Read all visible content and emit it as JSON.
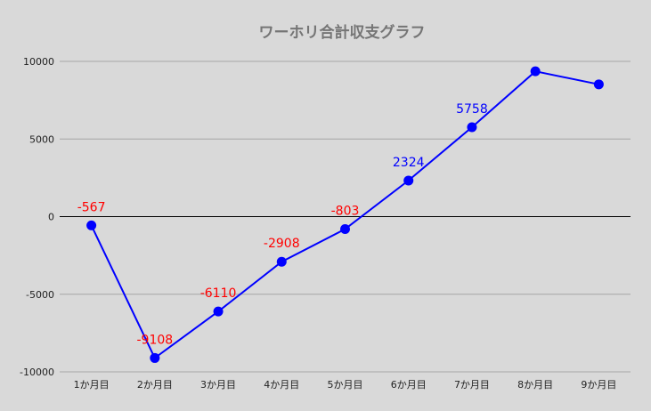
{
  "chart_data": {
    "type": "line",
    "title": "ワーホリ合計収支グラフ",
    "xlabel": "",
    "ylabel": "",
    "categories": [
      "1か月目",
      "2か月目",
      "3か月目",
      "4か月目",
      "5か月目",
      "6か月目",
      "7か月目",
      "8か月目",
      "9か月目"
    ],
    "series": [
      {
        "values": [
          -567,
          -9108,
          -6110,
          -2908,
          -803,
          2324,
          5758,
          9360,
          8520
        ]
      }
    ],
    "data_labels": [
      "-567",
      "-9108",
      "-6110",
      "-2908",
      "-803",
      "2324",
      "5758",
      "",
      ""
    ],
    "ylim": [
      -10000,
      10000
    ],
    "yticks": [
      10000,
      5000,
      0,
      -5000,
      -10000
    ],
    "grid": true,
    "legend": "none",
    "colors": {
      "line": "#0000ff",
      "negative_label": "#ff0000",
      "positive_label": "#0000ff",
      "grid": "#a6a6a6",
      "zero_line": "#000000",
      "background": "#d9d9d9"
    }
  }
}
